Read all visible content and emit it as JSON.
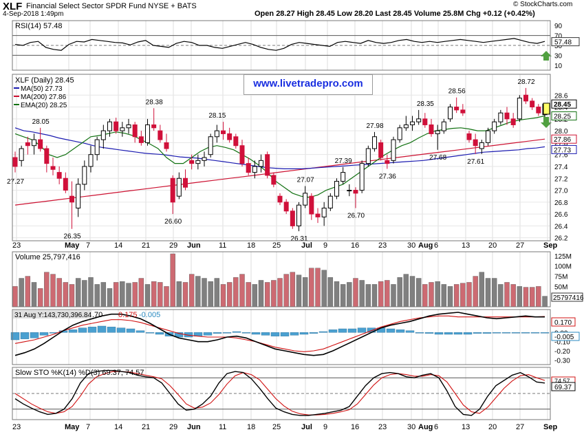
{
  "header": {
    "symbol": "XLF",
    "name": "Financial Select Sector SPDR Fund NYSE + BATS",
    "date": "4-Sep-2018 1:49pm",
    "open_label": "Open",
    "open": "28.27",
    "high_label": "High",
    "high": "28.45",
    "low_label": "Low",
    "low": "28.20",
    "last_label": "Last",
    "last": "28.45",
    "volume_label": "Volume",
    "volume": "25.8M",
    "chg_label": "Chg",
    "chg": "+0.12 (+0.42%)",
    "credit": "© StockCharts.com"
  },
  "watermark": "www.livetradepro.com",
  "colors": {
    "up": "#000000",
    "down": "#d0103a",
    "ma50": "#1a1ab0",
    "ma200": "#cc1030",
    "ema20": "#107010",
    "vol_up": "#808080",
    "vol_down": "#cd6a72",
    "hist": "#4aa0d0",
    "arrow": "#50a040"
  },
  "chart_data": [
    {
      "type": "line",
      "panel": "RSI",
      "legend": "RSI(14) 57.48",
      "ylim": [
        0,
        100
      ],
      "y_ticks": [
        90,
        70,
        50,
        30,
        10
      ],
      "current_label": "57.48",
      "values": [
        52,
        50,
        56,
        58,
        46,
        42,
        40,
        52,
        58,
        57,
        62,
        60,
        58,
        56,
        55,
        51,
        57,
        60,
        50,
        48,
        46,
        54,
        58,
        56,
        50,
        50,
        46,
        44,
        48,
        52,
        56,
        52,
        46,
        42,
        40,
        44,
        52,
        56,
        54,
        52,
        50,
        48,
        56,
        58,
        56,
        54,
        60,
        56,
        54,
        56,
        60,
        62,
        58,
        56,
        58,
        56,
        58,
        60,
        62,
        60,
        58,
        56,
        58,
        60,
        62,
        64,
        60,
        56,
        54,
        58
      ]
    },
    {
      "type": "candlestick",
      "panel": "Price",
      "legend": {
        "series": "XLF (Daily) 28.45",
        "ma50": "MA(50) 27.73",
        "ma200": "MA(200) 27.86",
        "ema20": "EMA(20) 28.25"
      },
      "ylim": [
        26.15,
        28.95
      ],
      "y_ticks": [
        28.6,
        28.4,
        28.2,
        28.0,
        27.8,
        27.6,
        27.4,
        27.2,
        27.0,
        26.8,
        26.6,
        26.4,
        26.2
      ],
      "x_ticks": [
        "23",
        "May",
        "7",
        "14",
        "21",
        "29",
        "Jun",
        "11",
        "18",
        "25",
        "Jul",
        "9",
        "16",
        "23",
        "30",
        "Aug",
        "6",
        "13",
        "20",
        "27",
        "Sep"
      ],
      "right_labels": [
        "28.45",
        "28.25",
        "27.86",
        "27.73"
      ],
      "annotations": [
        "28.05",
        "27.27",
        "26.35",
        "28.38",
        "26.60",
        "28.15",
        "27.07",
        "26.31",
        "27.39",
        "26.70",
        "27.98",
        "27.36",
        "28.35",
        "28.56",
        "27.68",
        "27.61",
        "28.72"
      ],
      "ohlc": [
        [
          27.55,
          27.65,
          27.3,
          27.4
        ],
        [
          27.5,
          27.75,
          27.4,
          27.7
        ],
        [
          27.8,
          27.9,
          27.6,
          27.75
        ],
        [
          27.75,
          27.95,
          27.6,
          27.85
        ],
        [
          27.85,
          28.05,
          27.65,
          27.7
        ],
        [
          27.7,
          27.75,
          27.3,
          27.45
        ],
        [
          27.4,
          27.55,
          27.25,
          27.35
        ],
        [
          27.3,
          27.4,
          27.1,
          27.2
        ],
        [
          27.2,
          27.3,
          26.95,
          27.0
        ],
        [
          26.9,
          27.15,
          26.35,
          26.8
        ],
        [
          26.7,
          27.2,
          26.55,
          27.1
        ],
        [
          27.1,
          27.5,
          27.0,
          27.4
        ],
        [
          27.4,
          27.75,
          27.3,
          27.6
        ],
        [
          27.6,
          27.9,
          27.5,
          27.85
        ],
        [
          27.85,
          28.1,
          27.7,
          28.0
        ],
        [
          28.0,
          28.2,
          27.9,
          28.15
        ],
        [
          28.15,
          28.22,
          27.95,
          28.0
        ],
        [
          28.0,
          28.15,
          27.9,
          28.05
        ],
        [
          28.05,
          28.2,
          27.95,
          28.1
        ],
        [
          28.1,
          28.15,
          27.8,
          27.9
        ],
        [
          27.9,
          28.0,
          27.75,
          27.8
        ],
        [
          27.8,
          28.2,
          27.75,
          28.1
        ],
        [
          28.1,
          28.38,
          28.0,
          28.05
        ],
        [
          28.0,
          28.1,
          27.8,
          27.85
        ],
        [
          27.8,
          27.95,
          27.65,
          27.7
        ],
        [
          27.2,
          27.25,
          26.6,
          26.8
        ],
        [
          26.9,
          27.3,
          26.85,
          27.2
        ],
        [
          27.2,
          27.35,
          27.0,
          27.05
        ],
        [
          27.5,
          27.6,
          27.35,
          27.45
        ],
        [
          27.45,
          27.6,
          27.35,
          27.5
        ],
        [
          27.5,
          27.65,
          27.4,
          27.55
        ],
        [
          27.6,
          27.95,
          27.55,
          27.9
        ],
        [
          27.9,
          28.1,
          27.8,
          28.0
        ],
        [
          28.0,
          28.15,
          27.85,
          27.95
        ],
        [
          27.95,
          28.05,
          27.8,
          27.85
        ],
        [
          27.9,
          27.95,
          27.7,
          27.75
        ],
        [
          27.75,
          27.85,
          27.4,
          27.45
        ],
        [
          27.45,
          27.55,
          27.25,
          27.3
        ],
        [
          27.3,
          27.5,
          27.2,
          27.4
        ],
        [
          27.4,
          27.6,
          27.3,
          27.5
        ],
        [
          27.6,
          27.65,
          27.2,
          27.25
        ],
        [
          27.25,
          27.3,
          27.05,
          27.1
        ],
        [
          26.9,
          26.95,
          26.75,
          26.8
        ],
        [
          26.8,
          26.85,
          26.6,
          26.65
        ],
        [
          26.65,
          26.7,
          26.35,
          26.4
        ],
        [
          26.4,
          26.8,
          26.31,
          26.75
        ],
        [
          26.75,
          27.07,
          26.7,
          26.95
        ],
        [
          26.9,
          26.95,
          26.5,
          26.6
        ],
        [
          26.6,
          26.7,
          26.45,
          26.55
        ],
        [
          26.55,
          26.8,
          26.4,
          26.7
        ],
        [
          26.7,
          26.95,
          26.65,
          26.9
        ],
        [
          26.9,
          27.2,
          26.85,
          27.15
        ],
        [
          27.15,
          27.39,
          27.1,
          27.3
        ],
        [
          27.0,
          27.1,
          26.9,
          27.0
        ],
        [
          27.0,
          27.05,
          26.7,
          26.95
        ],
        [
          27.0,
          27.5,
          26.95,
          27.45
        ],
        [
          27.45,
          27.75,
          27.4,
          27.7
        ],
        [
          27.7,
          27.98,
          27.65,
          27.9
        ],
        [
          27.8,
          27.85,
          27.5,
          27.55
        ],
        [
          27.5,
          27.6,
          27.36,
          27.45
        ],
        [
          27.5,
          27.9,
          27.45,
          27.85
        ],
        [
          27.85,
          28.1,
          27.8,
          28.05
        ],
        [
          28.05,
          28.25,
          28.0,
          28.1
        ],
        [
          28.1,
          28.25,
          28.0,
          28.15
        ],
        [
          28.15,
          28.35,
          28.1,
          28.2
        ],
        [
          28.2,
          28.3,
          28.05,
          28.1
        ],
        [
          28.1,
          28.2,
          27.9,
          27.95
        ],
        [
          27.95,
          28.1,
          27.68,
          28.0
        ],
        [
          28.0,
          28.2,
          27.95,
          28.15
        ],
        [
          28.2,
          28.45,
          28.15,
          28.4
        ],
        [
          28.4,
          28.56,
          28.3,
          28.35
        ],
        [
          28.35,
          28.45,
          28.25,
          28.3
        ],
        [
          27.95,
          28.0,
          27.8,
          27.85
        ],
        [
          27.85,
          27.95,
          27.61,
          27.75
        ],
        [
          27.7,
          27.85,
          27.61,
          27.8
        ],
        [
          27.8,
          28.05,
          27.75,
          28.0
        ],
        [
          28.0,
          28.2,
          27.95,
          28.15
        ],
        [
          28.15,
          28.35,
          28.1,
          28.3
        ],
        [
          28.3,
          28.4,
          28.1,
          28.2
        ],
        [
          28.2,
          28.3,
          28.05,
          28.1
        ],
        [
          28.2,
          28.6,
          28.15,
          28.55
        ],
        [
          28.6,
          28.72,
          28.45,
          28.5
        ],
        [
          28.5,
          28.55,
          28.35,
          28.4
        ],
        [
          28.4,
          28.45,
          28.25,
          28.3
        ],
        [
          28.27,
          28.45,
          28.2,
          28.45
        ]
      ],
      "ma50": [
        28.05,
        28.0,
        27.98,
        27.95,
        27.92,
        27.88,
        27.85,
        27.82,
        27.79,
        27.75,
        27.72,
        27.7,
        27.68,
        27.66,
        27.64,
        27.62,
        27.61,
        27.6,
        27.58,
        27.56,
        27.55,
        27.54,
        27.52,
        27.5,
        27.48,
        27.46,
        27.44,
        27.42,
        27.4,
        27.38,
        27.37,
        27.36,
        27.36,
        27.36,
        27.37,
        27.38,
        27.39,
        27.4,
        27.41,
        27.42,
        27.43,
        27.44,
        27.45,
        27.46,
        27.47,
        27.48,
        27.49,
        27.5,
        27.52,
        27.54,
        27.56,
        27.58,
        27.6,
        27.62,
        27.64,
        27.65,
        27.66,
        27.67,
        27.68,
        27.7,
        27.71,
        27.73
      ],
      "ma200": [
        26.75,
        26.78,
        26.81,
        26.84,
        26.87,
        26.9,
        26.93,
        26.96,
        26.99,
        27.02,
        27.05,
        27.08,
        27.11,
        27.14,
        27.17,
        27.2,
        27.23,
        27.26,
        27.29,
        27.32,
        27.35,
        27.38,
        27.41,
        27.44,
        27.47,
        27.5,
        27.53,
        27.56,
        27.59,
        27.62,
        27.65,
        27.68,
        27.71,
        27.74,
        27.77,
        27.8,
        27.83,
        27.86
      ],
      "ema20": [
        27.95,
        27.9,
        27.85,
        27.75,
        27.6,
        27.55,
        27.6,
        27.7,
        27.8,
        27.9,
        27.92,
        27.95,
        27.98,
        27.96,
        27.92,
        27.85,
        27.78,
        27.7,
        27.55,
        27.45,
        27.45,
        27.55,
        27.65,
        27.72,
        27.75,
        27.72,
        27.68,
        27.6,
        27.52,
        27.42,
        27.3,
        27.15,
        27.05,
        26.95,
        26.9,
        26.88,
        26.92,
        27.0,
        27.05,
        27.1,
        27.2,
        27.3,
        27.4,
        27.5,
        27.6,
        27.68,
        27.75,
        27.8,
        27.88,
        27.95,
        28.0,
        28.02,
        28.04,
        28.05,
        28.03,
        28.0,
        28.0,
        28.05,
        28.1,
        28.15,
        28.18,
        28.2,
        28.22,
        28.25
      ]
    },
    {
      "type": "bar",
      "panel": "Volume",
      "legend": "Volume 25,797,416",
      "ylim": [
        0,
        135
      ],
      "y_ticks": [
        125,
        100,
        75,
        50,
        25
      ],
      "y_tick_labels": [
        "125M",
        "100M",
        "75M",
        "50M",
        "25M"
      ],
      "current_label": "25797416",
      "values_millions": [
        50,
        70,
        75,
        60,
        45,
        85,
        80,
        70,
        60,
        55,
        70,
        65,
        72,
        55,
        60,
        45,
        60,
        62,
        58,
        60,
        70,
        55,
        62,
        60,
        50,
        130,
        62,
        60,
        80,
        75,
        70,
        62,
        70,
        55,
        60,
        72,
        80,
        60,
        55,
        65,
        60,
        65,
        70,
        80,
        85,
        78,
        72,
        95,
        95,
        90,
        72,
        62,
        55,
        60,
        70,
        65,
        55,
        55,
        62,
        65,
        55,
        72,
        80,
        75,
        70,
        55,
        60,
        62,
        55,
        50,
        55,
        58,
        60,
        75,
        85,
        70,
        70,
        55,
        60,
        55,
        50,
        48,
        48,
        50,
        26
      ]
    },
    {
      "type": "line",
      "panel": "MACD",
      "legend_date": "31 Aug Y:143,730,396.84",
      "legend_values": [
        ".70",
        "0.175",
        "-0.005"
      ],
      "ylim": [
        -0.35,
        0.25
      ],
      "y_ticks": [
        0.1,
        0.0,
        -0.1,
        -0.2,
        -0.3
      ],
      "y_tick_labels": [
        "0.10",
        "0.00",
        "-0.10",
        "-0.20",
        "-0.30"
      ],
      "current_labels": [
        "0.170",
        "-0.005"
      ],
      "macd": [
        -0.25,
        -0.22,
        -0.18,
        -0.12,
        -0.05,
        0.02,
        0.08,
        0.12,
        0.15,
        0.18,
        0.2,
        0.2,
        0.18,
        0.15,
        0.1,
        0.04,
        -0.02,
        -0.06,
        -0.08,
        -0.1,
        -0.1,
        -0.08,
        -0.05,
        -0.04,
        -0.06,
        -0.1,
        -0.14,
        -0.18,
        -0.2,
        -0.22,
        -0.24,
        -0.25,
        -0.24,
        -0.2,
        -0.15,
        -0.1,
        -0.05,
        0.0,
        0.05,
        0.08,
        0.1,
        0.12,
        0.15,
        0.18,
        0.2,
        0.21,
        0.22,
        0.2,
        0.18,
        0.16,
        0.15,
        0.16,
        0.17,
        0.18,
        0.17,
        0.17
      ],
      "signal": [
        -0.12,
        -0.1,
        -0.08,
        -0.05,
        -0.02,
        0.02,
        0.05,
        0.08,
        0.1,
        0.12,
        0.14,
        0.14,
        0.13,
        0.11,
        0.08,
        0.05,
        0.02,
        -0.01,
        -0.03,
        -0.04,
        -0.05,
        -0.05,
        -0.05,
        -0.06,
        -0.08,
        -0.1,
        -0.13,
        -0.16,
        -0.18,
        -0.2,
        -0.21,
        -0.2,
        -0.18,
        -0.14,
        -0.1,
        -0.06,
        -0.02,
        0.02,
        0.06,
        0.09,
        0.12,
        0.14,
        0.16,
        0.17,
        0.18,
        0.18,
        0.17,
        0.17,
        0.17,
        0.17,
        0.17,
        0.17,
        0.17,
        0.17,
        0.17,
        0.175
      ],
      "histogram": [
        -0.08,
        -0.07,
        -0.06,
        -0.03,
        0.0,
        0.02,
        0.03,
        0.05,
        0.06,
        0.07,
        0.06,
        0.05,
        0.04,
        0.02,
        0.0,
        -0.02,
        -0.04,
        -0.05,
        -0.05,
        -0.04,
        -0.03,
        -0.01,
        0.0,
        0.01,
        0.0,
        -0.02,
        -0.03,
        -0.04,
        -0.04,
        -0.03,
        -0.02,
        -0.01,
        0.01,
        0.03,
        0.04,
        0.04,
        0.05,
        0.05,
        0.05,
        0.04,
        0.03,
        0.02,
        0.0,
        -0.01,
        -0.02,
        -0.02,
        -0.02,
        -0.02,
        -0.01,
        -0.01,
        0.0,
        0.0,
        -0.005,
        -0.005,
        -0.005,
        -0.005
      ]
    },
    {
      "type": "line",
      "panel": "Slow STO",
      "legend": "Slow STO %K(14) %D(3) 69.37, 74.57",
      "ylim": [
        0,
        100
      ],
      "current_labels": [
        "74.57",
        "69.37"
      ],
      "k": [
        40,
        30,
        22,
        15,
        10,
        12,
        20,
        40,
        70,
        88,
        92,
        94,
        94,
        92,
        90,
        85,
        82,
        80,
        70,
        50,
        30,
        18,
        20,
        30,
        45,
        70,
        88,
        92,
        90,
        78,
        60,
        40,
        22,
        15,
        10,
        8,
        8,
        10,
        12,
        15,
        18,
        25,
        45,
        65,
        80,
        88,
        90,
        88,
        82,
        80,
        85,
        88,
        80,
        55,
        25,
        10,
        8,
        20,
        45,
        65,
        75,
        85,
        90,
        82,
        72,
        70
      ],
      "d": [
        50,
        40,
        30,
        22,
        15,
        12,
        15,
        25,
        45,
        68,
        82,
        88,
        92,
        92,
        91,
        88,
        85,
        82,
        78,
        65,
        48,
        30,
        22,
        24,
        32,
        48,
        68,
        84,
        90,
        86,
        76,
        58,
        40,
        26,
        16,
        11,
        9,
        9,
        10,
        12,
        15,
        19,
        30,
        48,
        66,
        80,
        86,
        88,
        86,
        83,
        83,
        86,
        84,
        72,
        50,
        28,
        15,
        12,
        24,
        42,
        60,
        74,
        84,
        86,
        80,
        75
      ]
    }
  ]
}
